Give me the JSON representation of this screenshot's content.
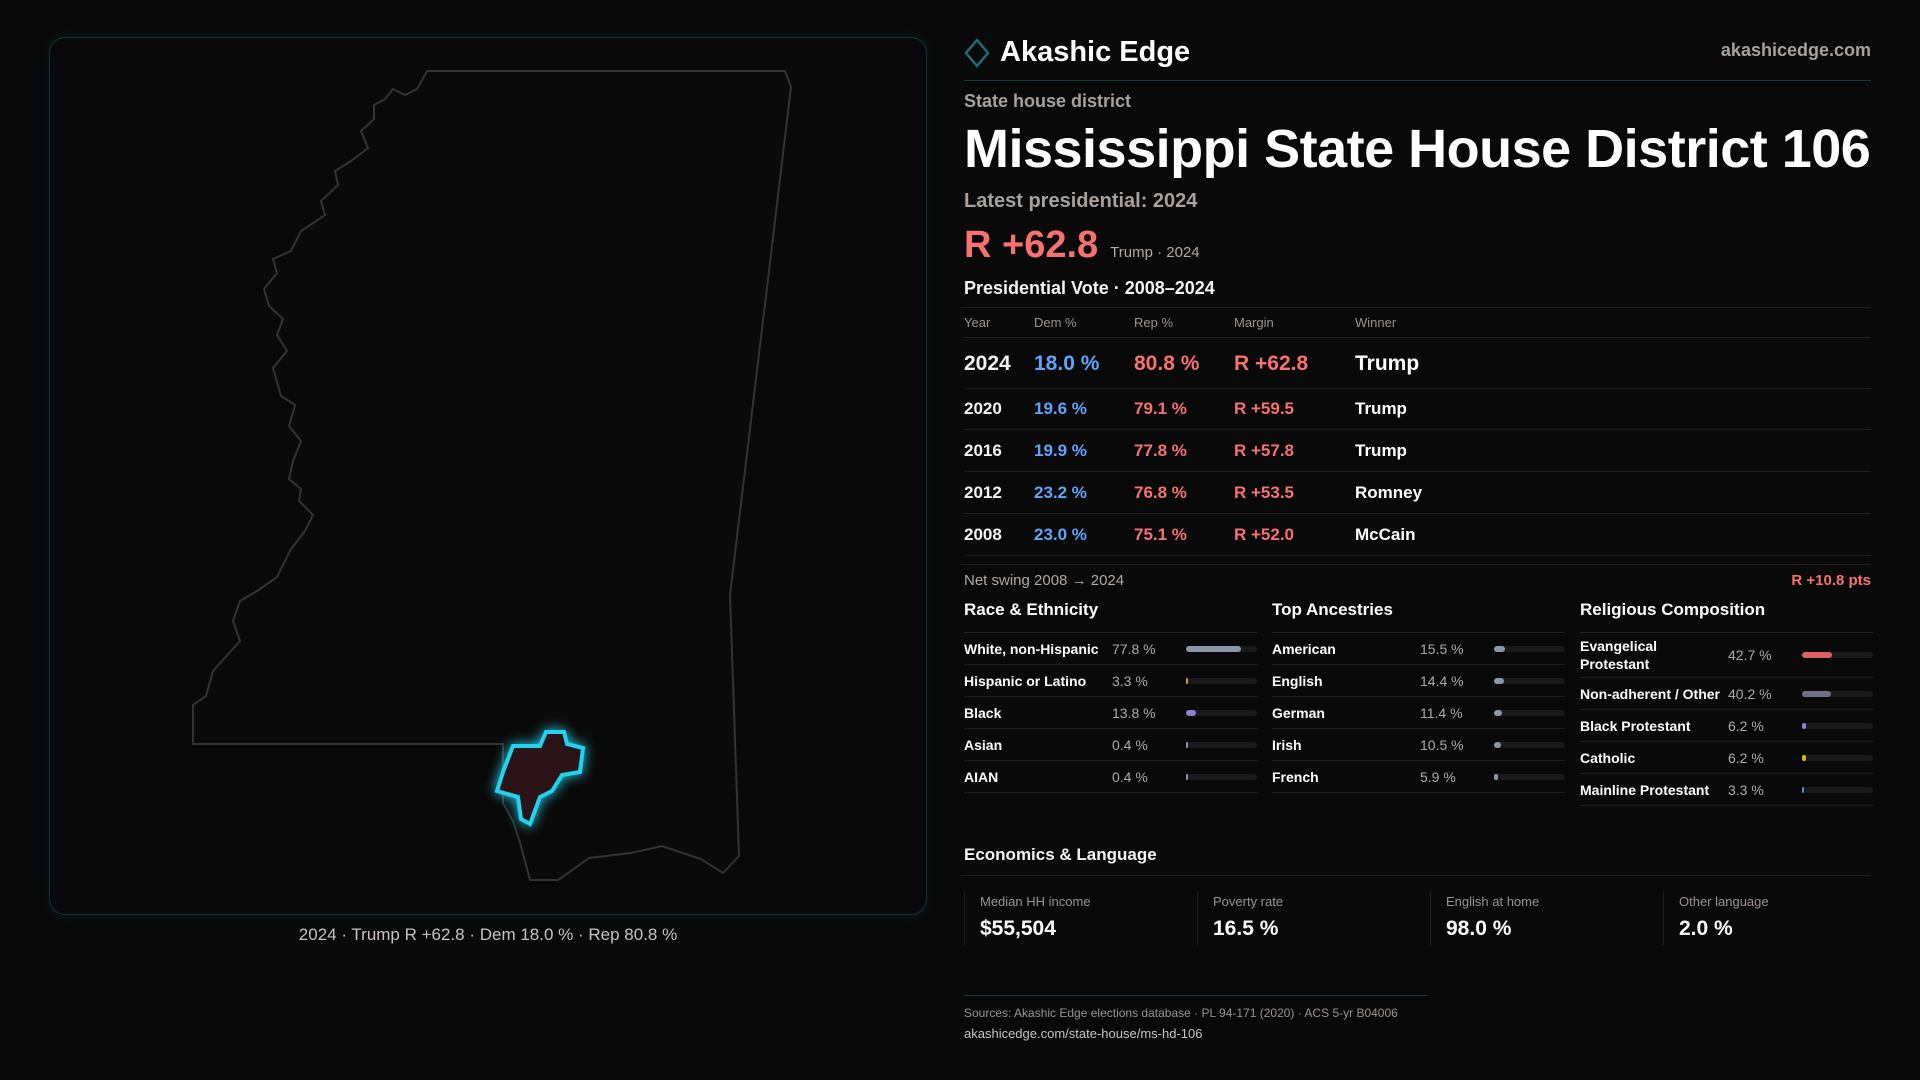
{
  "brand": {
    "name": "Akashic Edge",
    "site": "akashicedge.com",
    "accent": "#22d3ee"
  },
  "map": {
    "caption": "2024 · Trump R +62.8 · Dem 18.0 % · Rep 80.8 %",
    "highlight_color": "#22d3ee"
  },
  "header": {
    "kicker": "State house district",
    "title": "Mississippi State House District 106",
    "latest": "Latest presidential: 2024",
    "margin": "R +62.8",
    "margin_note": "Trump · 2024"
  },
  "presidential": {
    "heading": "Presidential Vote · 2008–2024",
    "columns": [
      "Year",
      "Dem %",
      "Rep %",
      "Margin",
      "Winner"
    ],
    "rows": [
      {
        "year": "2024",
        "dem": "18.0 %",
        "rep": "80.8 %",
        "margin": "R +62.8",
        "winner": "Trump"
      },
      {
        "year": "2020",
        "dem": "19.6 %",
        "rep": "79.1 %",
        "margin": "R +59.5",
        "winner": "Trump"
      },
      {
        "year": "2016",
        "dem": "19.9 %",
        "rep": "77.8 %",
        "margin": "R +57.8",
        "winner": "Trump"
      },
      {
        "year": "2012",
        "dem": "23.2 %",
        "rep": "76.8 %",
        "margin": "R +53.5",
        "winner": "Romney"
      },
      {
        "year": "2008",
        "dem": "23.0 %",
        "rep": "75.1 %",
        "margin": "R +52.0",
        "winner": "McCain"
      }
    ],
    "swing_label": "Net swing 2008 → 2024",
    "swing_value": "R +10.8 pts"
  },
  "race": {
    "heading": "Race & Ethnicity",
    "items": [
      {
        "label": "White, non-Hispanic",
        "pct": "77.8 %",
        "value": 77.8,
        "color": "#8b97aa"
      },
      {
        "label": "Hispanic or Latino",
        "pct": "3.3 %",
        "value": 3.3,
        "color": "#d4a017"
      },
      {
        "label": "Black",
        "pct": "13.8 %",
        "value": 13.8,
        "color": "#8b7fd6"
      },
      {
        "label": "Asian",
        "pct": "0.4 %",
        "value": 0.4,
        "color": "#8b97aa"
      },
      {
        "label": "AIAN",
        "pct": "0.4 %",
        "value": 0.4,
        "color": "#8b97aa"
      }
    ]
  },
  "ancestry": {
    "heading": "Top Ancestries",
    "items": [
      {
        "label": "American",
        "pct": "15.5 %",
        "value": 15.5,
        "color": "#8b97aa"
      },
      {
        "label": "English",
        "pct": "14.4 %",
        "value": 14.4,
        "color": "#8b97aa"
      },
      {
        "label": "German",
        "pct": "11.4 %",
        "value": 11.4,
        "color": "#8b97aa"
      },
      {
        "label": "Irish",
        "pct": "10.5 %",
        "value": 10.5,
        "color": "#8b97aa"
      },
      {
        "label": "French",
        "pct": "5.9 %",
        "value": 5.9,
        "color": "#8b97aa"
      }
    ]
  },
  "religion": {
    "heading": "Religious Composition",
    "items": [
      {
        "label": "Evangelical Protestant",
        "pct": "42.7 %",
        "value": 42.7,
        "color": "#e05f5f"
      },
      {
        "label": "Non-adherent / Other",
        "pct": "40.2 %",
        "value": 40.2,
        "color": "#6b7280"
      },
      {
        "label": "Black Protestant",
        "pct": "6.2 %",
        "value": 6.2,
        "color": "#8b7fd6"
      },
      {
        "label": "Catholic",
        "pct": "6.2 %",
        "value": 6.2,
        "color": "#e0b030"
      },
      {
        "label": "Mainline Protestant",
        "pct": "3.3 %",
        "value": 3.3,
        "color": "#4f8ef0"
      }
    ]
  },
  "economics": {
    "heading": "Economics & Language",
    "items": [
      {
        "label": "Median HH income",
        "value": "$55,504"
      },
      {
        "label": "Poverty rate",
        "value": "16.5 %"
      },
      {
        "label": "English at home",
        "value": "98.0 %"
      },
      {
        "label": "Other language",
        "value": "2.0 %"
      }
    ]
  },
  "footer": {
    "sources": "Sources: Akashic Edge elections database · PL 94-171 (2020) · ACS 5-yr B04006",
    "url": "akashicedge.com/state-house/ms-hd-106"
  }
}
